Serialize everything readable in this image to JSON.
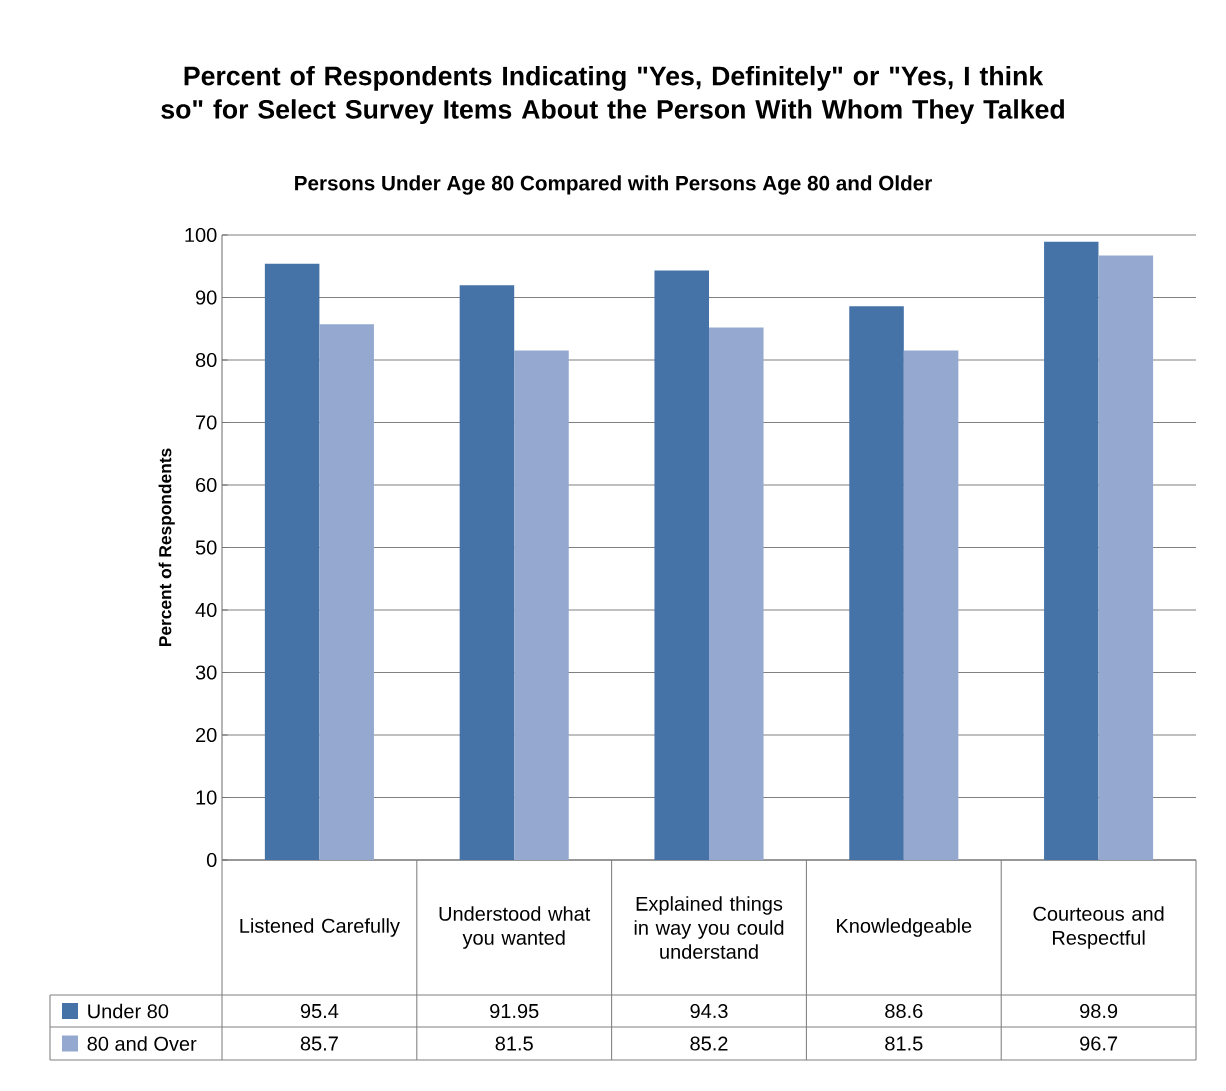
{
  "chart_data": {
    "type": "bar",
    "title": "Percent of Respondents Indicating \"Yes, Definitely\" or \"Yes, I think so\" for Select Survey Items About the Person With Whom They Talked",
    "subtitle": "Persons Under Age 80 Compared with Persons Age 80 and Older",
    "ylabel": "Percent of Respondents",
    "categories": [
      "Listened Carefully",
      "Understood what you wanted",
      "Explained things in way you could understand",
      "Knowledgeable",
      "Courteous and Respectful"
    ],
    "series": [
      {
        "name": "Under 80",
        "color": "#4572a7",
        "values": [
          95.4,
          91.95,
          94.3,
          88.6,
          98.9
        ],
        "value_labels": [
          "95.4",
          "91.95",
          "94.3",
          "88.6",
          "98.9"
        ]
      },
      {
        "name": "80 and Over",
        "color": "#95a9d0",
        "values": [
          85.7,
          81.5,
          85.2,
          81.5,
          96.7
        ],
        "value_labels": [
          "85.7",
          "81.5",
          "85.2",
          "81.5",
          "96.7"
        ]
      }
    ],
    "ylim": [
      0,
      100
    ],
    "yticks": [
      0,
      10,
      20,
      30,
      40,
      50,
      60,
      70,
      80,
      90,
      100
    ],
    "grid": "y",
    "legend": "bottom"
  }
}
